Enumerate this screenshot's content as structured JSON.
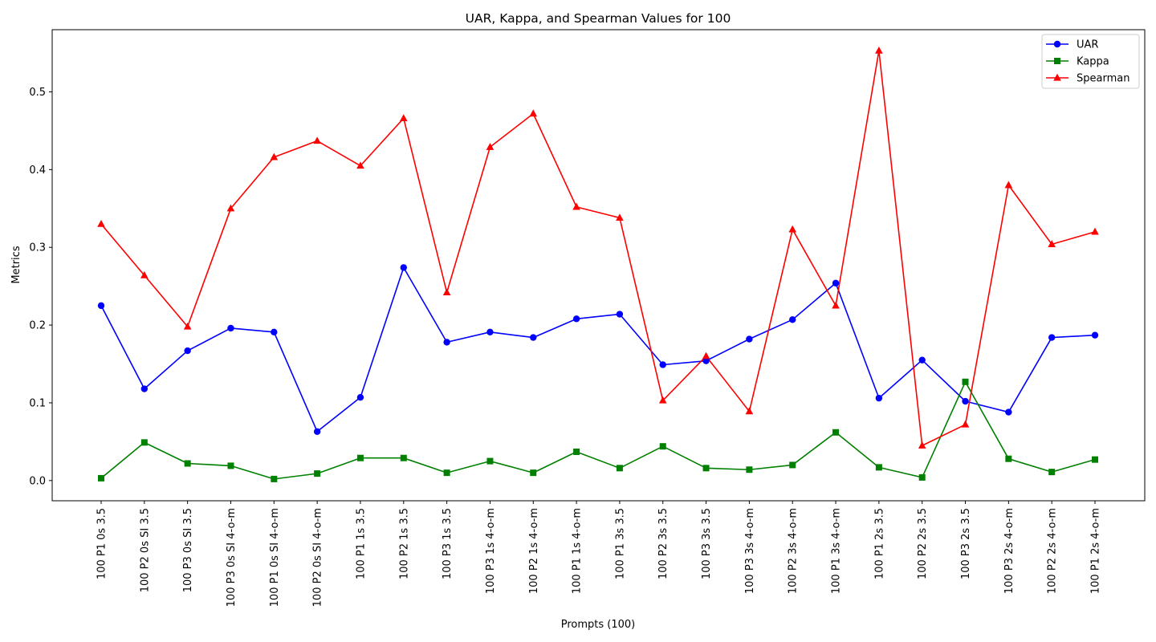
{
  "chart_data": {
    "type": "line",
    "title": "UAR, Kappa, and Spearman Values for 100",
    "xlabel": "Prompts (100)",
    "ylabel": "Metrics",
    "ylim": [
      -0.026,
      0.58
    ],
    "yticks": [
      "0.0",
      "0.1",
      "0.2",
      "0.3",
      "0.4",
      "0.5"
    ],
    "grid": false,
    "legend_position": "upper right",
    "categories": [
      "100 P1 0s 3.5",
      "100 P2 0s SI 3.5",
      "100 P3 0s SI 3.5",
      "100 P3 0s SI 4-o-m",
      "100 P1 0s SI 4-o-m",
      "100 P2 0s SI 4-o-m",
      "100 P1 1s 3.5",
      "100 P2 1s 3.5",
      "100 P3 1s 3.5",
      "100 P3 1s 4-o-m",
      "100 P2 1s 4-o-m",
      "100 P1 1s 4-o-m",
      "100 P1 3s 3.5",
      "100 P2 3s 3.5",
      "100 P3 3s 3.5",
      "100 P3 3s 4-o-m",
      "100 P2 3s 4-o-m",
      "100 P1 3s 4-o-m",
      "100 P1 2s 3.5",
      "100 P2 2s 3.5",
      "100 P3 2s 3.5",
      "100 P3 2s 4-o-m",
      "100 P2 2s 4-o-m",
      "100 P1 2s 4-o-m"
    ],
    "series": [
      {
        "name": "UAR",
        "color": "#0000ff",
        "marker": "circle",
        "values": [
          0.225,
          0.118,
          0.167,
          0.196,
          0.191,
          0.063,
          0.107,
          0.274,
          0.178,
          0.191,
          0.184,
          0.208,
          0.214,
          0.149,
          0.154,
          0.182,
          0.207,
          0.254,
          0.106,
          0.155,
          0.102,
          0.088,
          0.184,
          0.187
        ]
      },
      {
        "name": "Kappa",
        "color": "#008000",
        "marker": "square",
        "values": [
          0.003,
          0.049,
          0.022,
          0.019,
          0.002,
          0.009,
          0.029,
          0.029,
          0.01,
          0.025,
          0.01,
          0.037,
          0.016,
          0.044,
          0.016,
          0.014,
          0.02,
          0.062,
          0.017,
          0.004,
          0.127,
          0.028,
          0.011,
          0.027
        ]
      },
      {
        "name": "Spearman",
        "color": "#ff0000",
        "marker": "triangle",
        "values": [
          0.33,
          0.264,
          0.198,
          0.35,
          0.416,
          0.437,
          0.405,
          0.466,
          0.242,
          0.429,
          0.472,
          0.352,
          0.338,
          0.103,
          0.16,
          0.089,
          0.323,
          0.225,
          0.553,
          0.045,
          0.072,
          0.38,
          0.304,
          0.32
        ]
      }
    ]
  }
}
